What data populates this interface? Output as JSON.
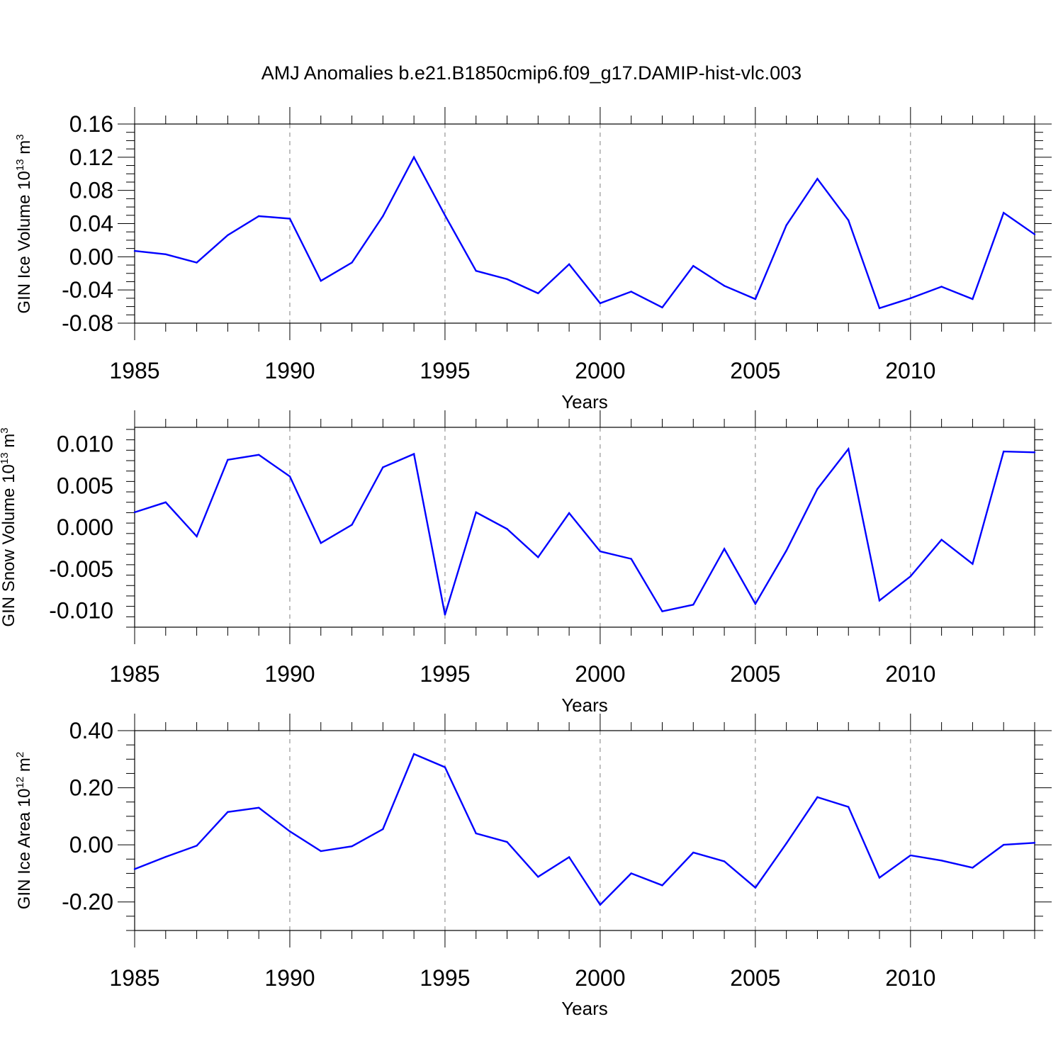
{
  "title": "AMJ Anomalies b.e21.B1850cmip6.f09_g17.DAMIP-hist-vlc.003",
  "colors": {
    "line": "#0000ff",
    "axis": "#000000",
    "grid": "#808080"
  },
  "chart_data": [
    {
      "type": "line",
      "ylabel": {
        "base": "GIN Ice Volume 10",
        "exp": "13",
        "unit": " m",
        "unit_exp": "3"
      },
      "xlabel": "Years",
      "xlim": [
        1985,
        2014
      ],
      "ylim": [
        -0.08,
        0.16
      ],
      "yticks": [
        -0.08,
        -0.04,
        0.0,
        0.04,
        0.08,
        0.12,
        0.16
      ],
      "ytick_labels": [
        "-0.08",
        "-0.04",
        "0.00",
        "0.04",
        "0.08",
        "0.12",
        "0.16"
      ],
      "xticks": [
        1985,
        1990,
        1995,
        2000,
        2005,
        2010
      ],
      "xtick_labels": [
        "1985",
        "1990",
        "1995",
        "2000",
        "2005",
        "2010"
      ],
      "grid_x": [
        1990,
        1995,
        2000,
        2005,
        2010
      ],
      "series": [
        {
          "name": "Ice Volume",
          "x": [
            1985,
            1986,
            1987,
            1988,
            1989,
            1990,
            1991,
            1992,
            1993,
            1994,
            1995,
            1996,
            1997,
            1998,
            1999,
            2000,
            2001,
            2002,
            2003,
            2004,
            2005,
            2006,
            2007,
            2008,
            2009,
            2010,
            2011,
            2012,
            2013,
            2014
          ],
          "values": [
            0.007,
            0.003,
            -0.007,
            0.026,
            0.049,
            0.046,
            -0.029,
            -0.007,
            0.049,
            0.12,
            0.05,
            -0.017,
            -0.027,
            -0.044,
            -0.009,
            -0.056,
            -0.042,
            -0.061,
            -0.011,
            -0.035,
            -0.051,
            0.038,
            0.094,
            0.044,
            -0.062,
            -0.05,
            -0.036,
            -0.051,
            0.053,
            0.027
          ]
        }
      ]
    },
    {
      "type": "line",
      "ylabel": {
        "base": "GIN Snow Volume 10",
        "exp": "13",
        "unit": " m",
        "unit_exp": "3"
      },
      "xlabel": "Years",
      "xlim": [
        1985,
        2014
      ],
      "ylim": [
        -0.012,
        0.012
      ],
      "yticks": [
        -0.01,
        -0.005,
        0.0,
        0.005,
        0.01
      ],
      "ytick_labels": [
        "-0.010",
        "-0.005",
        "0.000",
        "0.005",
        "0.010"
      ],
      "xticks": [
        1985,
        1990,
        1995,
        2000,
        2005,
        2010
      ],
      "xtick_labels": [
        "1985",
        "1990",
        "1995",
        "2000",
        "2005",
        "2010"
      ],
      "grid_x": [
        1990,
        1995,
        2000,
        2005,
        2010
      ],
      "series": [
        {
          "name": "Snow Volume",
          "x": [
            1985,
            1986,
            1987,
            1988,
            1989,
            1990,
            1991,
            1992,
            1993,
            1994,
            1995,
            1996,
            1997,
            1998,
            1999,
            2000,
            2001,
            2002,
            2003,
            2004,
            2005,
            2006,
            2007,
            2008,
            2009,
            2010,
            2011,
            2012,
            2013,
            2014
          ],
          "values": [
            0.0018,
            0.003,
            -0.0011,
            0.0081,
            0.0087,
            0.0061,
            -0.0019,
            0.0003,
            0.0072,
            0.0088,
            -0.0105,
            0.0018,
            -0.0002,
            -0.0036,
            0.0017,
            -0.0029,
            -0.0038,
            -0.0101,
            -0.0093,
            -0.0026,
            -0.0092,
            -0.0028,
            0.0046,
            0.0094,
            -0.0088,
            -0.0059,
            -0.0015,
            -0.0044,
            0.0091,
            0.009
          ]
        }
      ]
    },
    {
      "type": "line",
      "ylabel": {
        "base": "GIN Ice Area 10",
        "exp": "12",
        "unit": " m",
        "unit_exp": "2"
      },
      "xlabel": "Years",
      "xlim": [
        1985,
        2014
      ],
      "ylim": [
        -0.3,
        0.4
      ],
      "yticks": [
        -0.2,
        0.0,
        0.2,
        0.4
      ],
      "ytick_labels": [
        "-0.20",
        "0.00",
        "0.20",
        "0.40"
      ],
      "xticks": [
        1985,
        1990,
        1995,
        2000,
        2005,
        2010
      ],
      "xtick_labels": [
        "1985",
        "1990",
        "1995",
        "2000",
        "2005",
        "2010"
      ],
      "grid_x": [
        1990,
        1995,
        2000,
        2005,
        2010
      ],
      "series": [
        {
          "name": "Ice Area",
          "x": [
            1985,
            1986,
            1987,
            1988,
            1989,
            1990,
            1991,
            1992,
            1993,
            1994,
            1995,
            1996,
            1997,
            1998,
            1999,
            2000,
            2001,
            2002,
            2003,
            2004,
            2005,
            2006,
            2007,
            2008,
            2009,
            2010,
            2011,
            2012,
            2013,
            2014
          ],
          "values": [
            -0.085,
            -0.042,
            -0.003,
            0.115,
            0.13,
            0.047,
            -0.022,
            -0.005,
            0.055,
            0.318,
            0.272,
            0.04,
            0.01,
            -0.112,
            -0.043,
            -0.21,
            -0.1,
            -0.142,
            -0.027,
            -0.058,
            -0.15,
            0.005,
            0.167,
            0.133,
            -0.115,
            -0.037,
            -0.055,
            -0.08,
            0.0,
            0.007
          ]
        }
      ]
    }
  ]
}
